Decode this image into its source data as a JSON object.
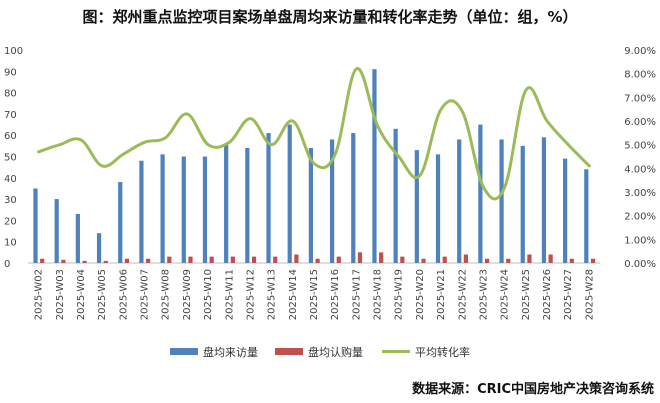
{
  "title": "图：郑州重点监控项目案场单盘周均来访量和转化率走势（单位：组，%）",
  "source": "数据来源：CRIC中国房地产决策咨询系统",
  "chart_data": {
    "type": "bar",
    "categories": [
      "2025-W02",
      "2025-W03",
      "2025-W04",
      "2025-W05",
      "2025-W06",
      "2025-W07",
      "2025-W08",
      "2025-W09",
      "2025-W10",
      "2025-W11",
      "2025-W12",
      "2025-W13",
      "2025-W14",
      "2025-W15",
      "2025-W16",
      "2025-W17",
      "2025-W18",
      "2025-W19",
      "2025-W20",
      "2025-W21",
      "2025-W22",
      "2025-W23",
      "2025-W24",
      "2025-W25",
      "2025-W26",
      "2025-W27",
      "2025-W28"
    ],
    "series": [
      {
        "name": "盘均来访量",
        "type": "bar",
        "axis": "left",
        "color": "#4f81bd",
        "values": [
          35,
          30,
          23,
          14,
          38,
          48,
          51,
          50,
          50,
          56,
          54,
          61,
          65,
          54,
          58,
          61,
          91,
          63,
          53,
          51,
          58,
          65,
          58,
          55,
          59,
          49,
          44
        ]
      },
      {
        "name": "盘均认购量",
        "type": "bar",
        "axis": "left",
        "color": "#c0504d",
        "values": [
          2,
          1.5,
          1,
          1,
          2,
          2,
          3,
          3,
          3,
          3,
          3,
          3,
          4,
          2,
          3,
          5,
          5,
          3,
          2,
          3,
          4,
          2,
          2,
          4,
          4,
          2,
          2
        ]
      },
      {
        "name": "平均转化率",
        "type": "line",
        "axis": "right",
        "color": "#9bbb59",
        "values": [
          4.7,
          5.0,
          5.2,
          4.1,
          4.6,
          5.1,
          5.3,
          6.3,
          5.0,
          5.1,
          6.1,
          5.0,
          6.0,
          4.2,
          4.6,
          8.2,
          5.8,
          4.5,
          3.7,
          6.5,
          6.4,
          3.2,
          3.2,
          7.3,
          6.0,
          5.0,
          4.1
        ]
      }
    ],
    "y_left": {
      "ylim": [
        0,
        100
      ],
      "ticks": [
        "0",
        "10",
        "20",
        "30",
        "40",
        "50",
        "60",
        "70",
        "80",
        "90",
        "100"
      ]
    },
    "y_right": {
      "ylim": [
        0,
        9
      ],
      "ticks": [
        "0.00%",
        "1.00%",
        "2.00%",
        "3.00%",
        "4.00%",
        "5.00%",
        "6.00%",
        "7.00%",
        "8.00%",
        "9.00%"
      ]
    },
    "grid": false,
    "legend_position": "bottom"
  }
}
